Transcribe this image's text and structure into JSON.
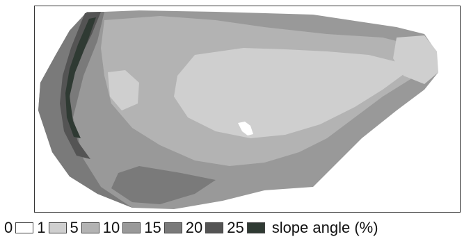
{
  "map": {
    "legend": {
      "classes": [
        {
          "from": "0",
          "color": "#ffffff"
        },
        {
          "from": "1",
          "color": "#cfcfcf"
        },
        {
          "from": "5",
          "color": "#b3b3b3"
        },
        {
          "from": "10",
          "color": "#999999"
        },
        {
          "from": "15",
          "color": "#7a7a7a"
        },
        {
          "from": "20",
          "color": "#545454"
        },
        {
          "from": "25",
          "color": "#2f3a33"
        }
      ],
      "unit_label": "slope angle (%)"
    },
    "colors": {
      "frame": "#333333",
      "background": "#ffffff"
    }
  }
}
